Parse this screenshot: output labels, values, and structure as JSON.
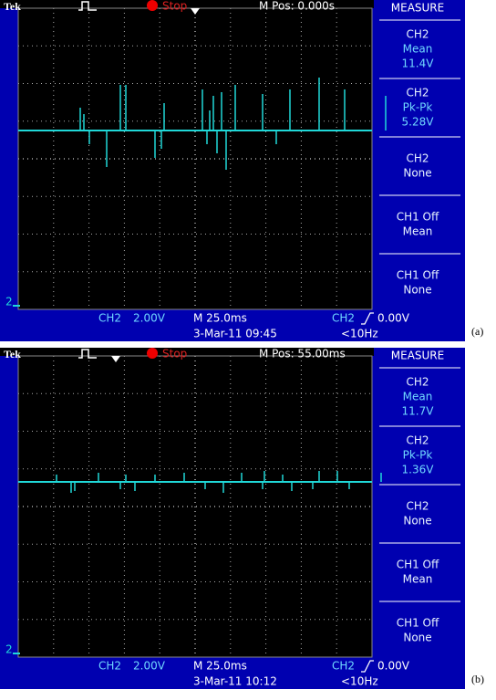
{
  "panels": [
    {
      "label": "(a)",
      "header": {
        "brand": "Tek",
        "status": "Stop",
        "position": "M Pos: 0.000s",
        "menu": "MEASURE"
      },
      "measure": [
        [
          "CH2",
          "Mean",
          "11.4V"
        ],
        [
          "CH2",
          "Pk-Pk",
          "5.28V"
        ],
        [
          "CH2",
          "None"
        ],
        [
          "CH1 Off",
          "Mean"
        ],
        [
          "CH1 Off",
          "None"
        ]
      ],
      "footer": {
        "channel": "CH2",
        "scale": "2.00V",
        "timebase": "M 25.0ms",
        "trigger_channel": "CH2",
        "trigger_level": "0.00V",
        "date": "3-Mar-11 09:45",
        "frequency": "<10Hz"
      },
      "marker": "2"
    },
    {
      "label": "(b)",
      "header": {
        "brand": "Tek",
        "status": "Stop",
        "position": "M Pos: 55.00ms",
        "menu": "MEASURE"
      },
      "measure": [
        [
          "CH2",
          "Mean",
          "11.7V"
        ],
        [
          "CH2",
          "Pk-Pk",
          "1.36V"
        ],
        [
          "CH2",
          "None"
        ],
        [
          "CH1 Off",
          "Mean"
        ],
        [
          "CH1 Off",
          "None"
        ]
      ],
      "footer": {
        "channel": "CH2",
        "scale": "2.00V",
        "timebase": "M 25.0ms",
        "trigger_channel": "CH2",
        "trigger_level": "0.00V",
        "date": "3-Mar-11 10:12",
        "frequency": "<10Hz"
      },
      "marker": "2"
    }
  ]
}
